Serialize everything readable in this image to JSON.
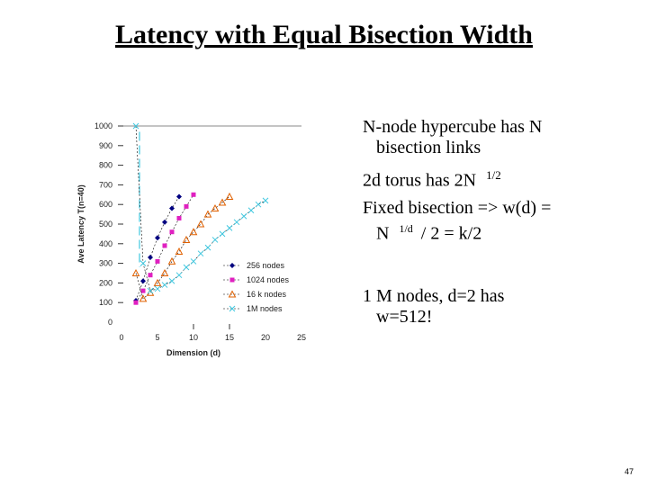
{
  "slide": {
    "title": "Latency with Equal Bisection Width",
    "page_number": "47"
  },
  "bullets": [
    {
      "line1": "N-node hypercube has N",
      "line2": "bisection links"
    },
    {
      "line1": "2d torus has 2N",
      "sup": "1/2"
    },
    {
      "line1": "Fixed bisection => w(d) =",
      "line2_pre": "N",
      "line2_sup": "1/d",
      "line2_post": "/ 2 = k/2"
    },
    {
      "line1": "1 M nodes, d=2 has",
      "line2": "w=512!"
    }
  ],
  "chart_data": {
    "type": "scatter",
    "xlabel": "Dimension (d)",
    "ylabel": "Ave Latency T(n=40)",
    "xlim": [
      0,
      25
    ],
    "ylim": [
      0,
      1000
    ],
    "xticks": [
      0,
      5,
      10,
      15,
      20,
      25
    ],
    "yticks": [
      0,
      100,
      200,
      300,
      400,
      500,
      600,
      700,
      800,
      900,
      1000
    ],
    "legend_position": "lower-right",
    "colors": {
      "256": "#000080",
      "1024": "#e020c0",
      "16k": "#e06000",
      "1M": "#40c8e0"
    },
    "series": [
      {
        "name": "256 nodes",
        "marker": "diamond",
        "color": "#000080",
        "x": [
          2,
          3,
          4,
          5,
          6,
          7,
          8
        ],
        "y": [
          110,
          210,
          330,
          430,
          510,
          580,
          640
        ]
      },
      {
        "name": "1024 nodes",
        "marker": "square",
        "color": "#e020c0",
        "x": [
          2,
          3,
          4,
          5,
          6,
          7,
          8,
          9,
          10
        ],
        "y": [
          100,
          160,
          240,
          310,
          390,
          460,
          530,
          590,
          650
        ]
      },
      {
        "name": "16 k nodes",
        "marker": "triangle",
        "color": "#e06000",
        "x": [
          2,
          3,
          4,
          5,
          6,
          7,
          8,
          9,
          10,
          11,
          12,
          13,
          14,
          15
        ],
        "y": [
          250,
          120,
          150,
          200,
          250,
          310,
          360,
          420,
          460,
          500,
          550,
          580,
          610,
          640
        ]
      },
      {
        "name": "1M nodes",
        "marker": "x",
        "color": "#40c8e0",
        "x": [
          2,
          3,
          4,
          5,
          6,
          7,
          8,
          9,
          10,
          11,
          12,
          13,
          14,
          15,
          16,
          17,
          18,
          19,
          20
        ],
        "y": [
          1000,
          300,
          160,
          170,
          190,
          210,
          240,
          280,
          310,
          350,
          380,
          420,
          450,
          480,
          510,
          540,
          570,
          600,
          620
        ]
      }
    ]
  }
}
